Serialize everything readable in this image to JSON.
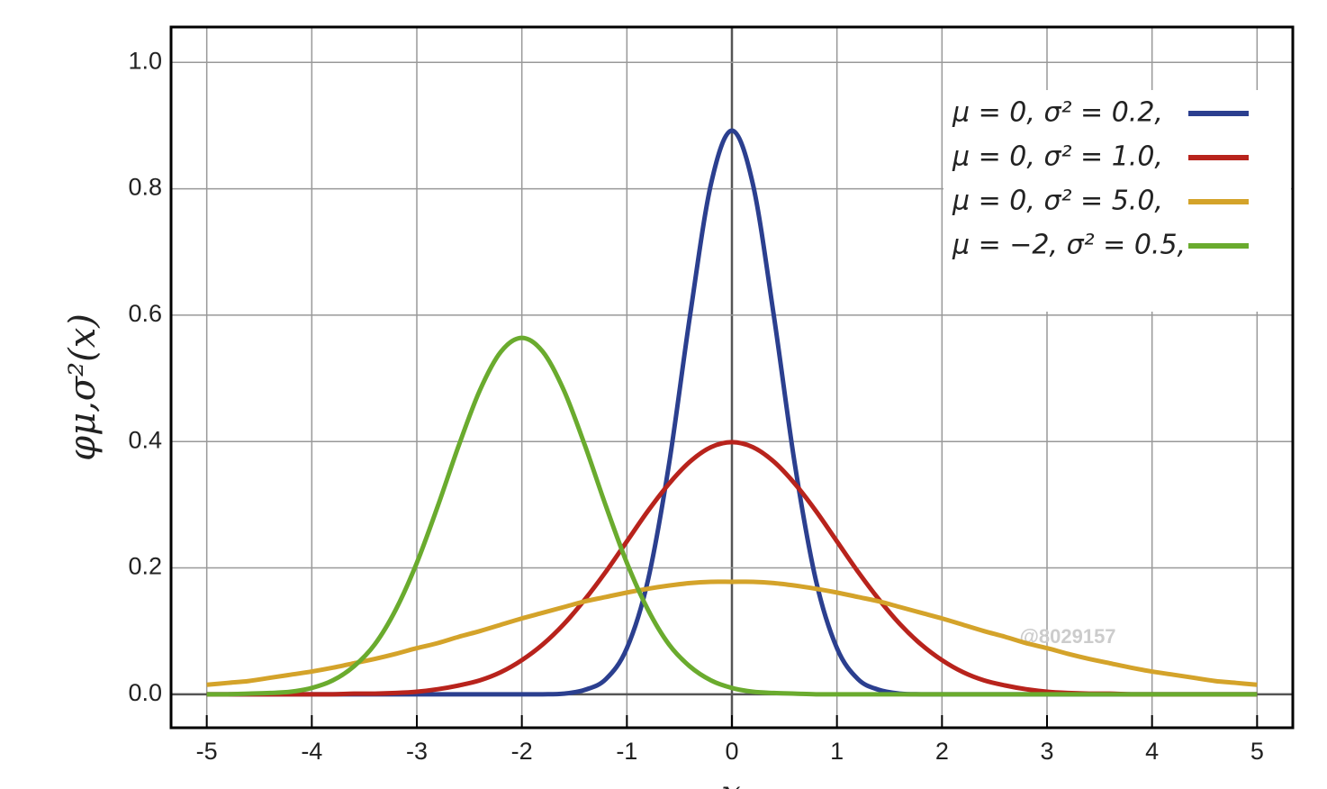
{
  "chart_data": {
    "type": "line",
    "ylabel": "φμ,σ²(x)",
    "xlabel": "x",
    "watermark": "@8029157",
    "legend": "upper right",
    "grid": true,
    "xlim": [
      -5.34,
      5.34
    ],
    "ylim": [
      -0.053,
      1.056
    ],
    "xticks": [
      -5,
      -4,
      -3,
      -2,
      -1,
      0,
      1,
      2,
      3,
      4,
      5
    ],
    "yticks": [
      {
        "value": 0,
        "label": "0.0"
      },
      0.2,
      0.4,
      0.6,
      0.8,
      {
        "value": 1,
        "label": "1.0"
      }
    ],
    "x": [
      -5,
      -4.8,
      -4.6,
      -4.4,
      -4.2,
      -4,
      -3.8,
      -3.6,
      -3.4,
      -3.2,
      -3,
      -2.8,
      -2.6,
      -2.4,
      -2.2,
      -2,
      -1.8,
      -1.6,
      -1.4,
      -1.2,
      -1,
      -0.8,
      -0.6,
      -0.4,
      -0.2,
      0,
      0.2,
      0.4,
      0.6,
      0.8,
      1,
      1.2,
      1.4,
      1.6,
      1.8,
      2,
      2.2,
      2.4,
      2.6,
      2.8,
      3,
      3.2,
      3.4,
      3.6,
      3.8,
      4,
      4.2,
      4.4,
      4.6,
      4.8,
      5
    ],
    "series": [
      {
        "name": "μ = 0,    σ² = 0.2,",
        "color": "#2b3f8f",
        "values": [
          0,
          0,
          0,
          0,
          0,
          0,
          0,
          0,
          0,
          0,
          0,
          0,
          0,
          0,
          0,
          0,
          0,
          0.001,
          0.007,
          0.024,
          0.073,
          0.18,
          0.363,
          0.598,
          0.807,
          0.892,
          0.807,
          0.598,
          0.363,
          0.18,
          0.073,
          0.024,
          0.007,
          0.001,
          0,
          0,
          0,
          0,
          0,
          0,
          0,
          0,
          0,
          0,
          0,
          0,
          0,
          0,
          0,
          0,
          0
        ]
      },
      {
        "name": "μ = 0,    σ² = 1.0,",
        "color": "#b8231c",
        "values": [
          0,
          0,
          0,
          0,
          0,
          0,
          0,
          0.001,
          0.001,
          0.002,
          0.004,
          0.008,
          0.014,
          0.022,
          0.035,
          0.054,
          0.079,
          0.111,
          0.15,
          0.194,
          0.242,
          0.29,
          0.333,
          0.368,
          0.391,
          0.399,
          0.391,
          0.368,
          0.333,
          0.29,
          0.242,
          0.194,
          0.15,
          0.111,
          0.079,
          0.054,
          0.035,
          0.022,
          0.014,
          0.008,
          0.004,
          0.002,
          0.001,
          0.001,
          0,
          0,
          0,
          0,
          0,
          0,
          0
        ]
      },
      {
        "name": "μ = 0,    σ² = 5.0,",
        "color": "#d4a32a",
        "values": [
          0.015,
          0.018,
          0.021,
          0.026,
          0.031,
          0.036,
          0.042,
          0.049,
          0.056,
          0.064,
          0.073,
          0.081,
          0.091,
          0.1,
          0.11,
          0.12,
          0.129,
          0.138,
          0.147,
          0.154,
          0.161,
          0.167,
          0.172,
          0.176,
          0.178,
          0.178,
          0.178,
          0.176,
          0.172,
          0.167,
          0.161,
          0.154,
          0.147,
          0.138,
          0.129,
          0.12,
          0.11,
          0.1,
          0.091,
          0.081,
          0.073,
          0.064,
          0.056,
          0.049,
          0.042,
          0.036,
          0.031,
          0.026,
          0.021,
          0.018,
          0.015
        ]
      },
      {
        "name": "μ = −2,  σ² = 0.5,",
        "color": "#6aab2e",
        "values": [
          0,
          0,
          0.001,
          0.002,
          0.004,
          0.01,
          0.022,
          0.044,
          0.079,
          0.134,
          0.208,
          0.298,
          0.394,
          0.481,
          0.542,
          0.564,
          0.542,
          0.481,
          0.394,
          0.298,
          0.208,
          0.134,
          0.079,
          0.044,
          0.022,
          0.01,
          0.004,
          0.002,
          0.001,
          0,
          0,
          0,
          0,
          0,
          0,
          0,
          0,
          0,
          0,
          0,
          0,
          0,
          0,
          0,
          0,
          0,
          0,
          0,
          0,
          0,
          0
        ]
      }
    ]
  }
}
